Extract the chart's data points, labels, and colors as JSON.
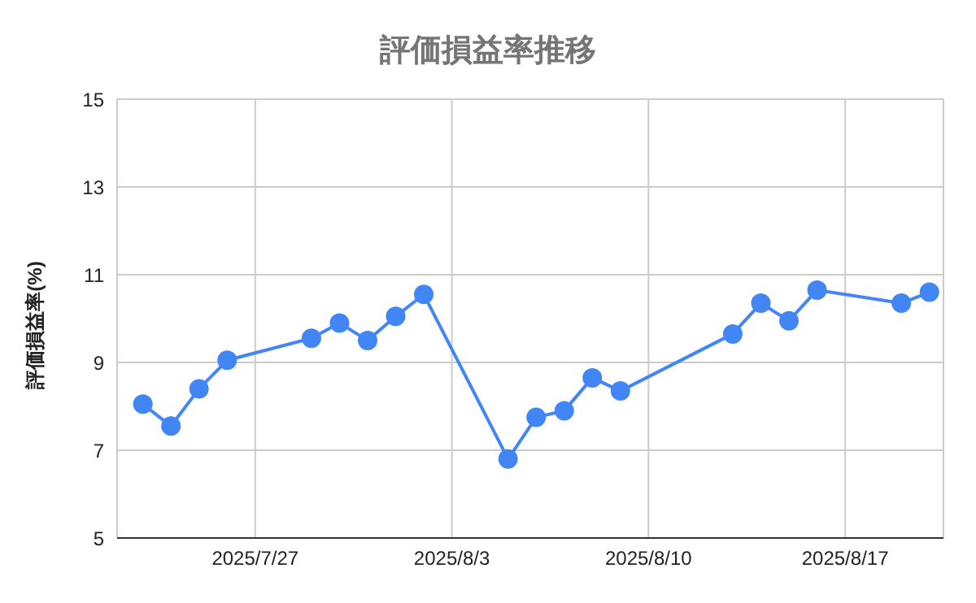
{
  "chart_data": {
    "type": "line",
    "title": "評価損益率推移",
    "ylabel": "評価損益率(%)",
    "x": [
      "2025-07-23",
      "2025-07-24",
      "2025-07-25",
      "2025-07-26",
      "2025-07-29",
      "2025-07-30",
      "2025-07-31",
      "2025-08-01",
      "2025-08-02",
      "2025-08-05",
      "2025-08-06",
      "2025-08-07",
      "2025-08-08",
      "2025-08-09",
      "2025-08-13",
      "2025-08-14",
      "2025-08-15",
      "2025-08-16",
      "2025-08-19",
      "2025-08-20"
    ],
    "series": [
      {
        "color": "#4285f4",
        "values": [
          8.05,
          7.55,
          8.4,
          9.05,
          9.55,
          9.9,
          9.5,
          10.05,
          10.55,
          6.8,
          7.75,
          7.9,
          8.65,
          8.35,
          9.65,
          10.35,
          9.95,
          10.65,
          10.35,
          10.6
        ]
      }
    ],
    "xlim": [
      "2025-07-22T02:00",
      "2025-08-20T12:00"
    ],
    "xticks": [
      {
        "value": "2025-07-27",
        "label": "2025/7/27"
      },
      {
        "value": "2025-08-03",
        "label": "2025/8/3"
      },
      {
        "value": "2025-08-10",
        "label": "2025/8/10"
      },
      {
        "value": "2025-08-17",
        "label": "2025/8/17"
      }
    ],
    "ylim": [
      5,
      15
    ],
    "yticks": [
      5,
      7,
      9,
      11,
      13,
      15
    ],
    "grid": true,
    "marker": "circle",
    "line_style": "solid",
    "legend": false
  }
}
